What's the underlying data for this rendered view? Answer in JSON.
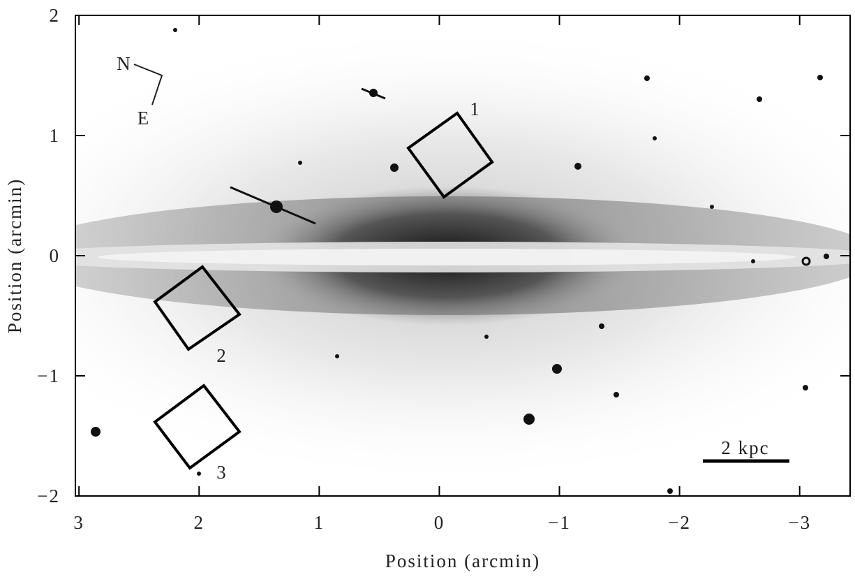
{
  "chart_data": {
    "type": "image",
    "x_label": "Position (arcmin)",
    "y_label": "Position (arcmin)",
    "xlim": [
      3.03,
      -3.42
    ],
    "ylim": [
      -2,
      2
    ],
    "xticks": [
      3,
      2,
      1,
      0,
      {
        "value": -1,
        "label": "−1"
      },
      {
        "value": -2,
        "label": "−2"
      },
      {
        "value": -3,
        "label": "−3"
      }
    ],
    "yticks": [
      {
        "value": -2,
        "label": "−2"
      },
      {
        "value": -1,
        "label": "−1"
      },
      0,
      1,
      2
    ],
    "annotations": [
      "1",
      "2",
      "3"
    ],
    "compass": [
      "N",
      "E"
    ],
    "scale_bar": "2 kpc"
  }
}
